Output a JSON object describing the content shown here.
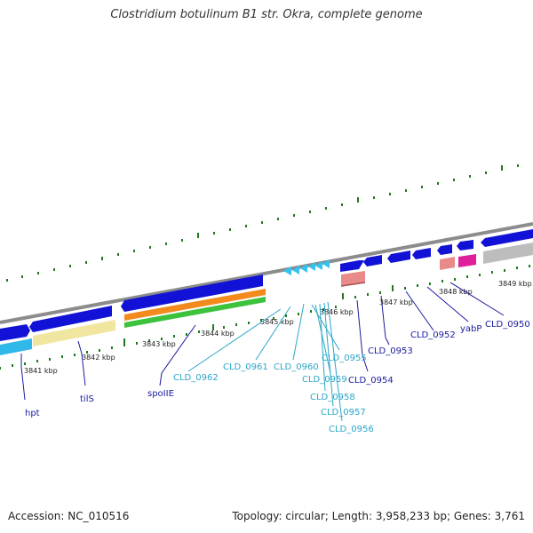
{
  "title": "Clostridium botulinum B1 str. Okra, complete genome",
  "footer": {
    "accession": "Accession: NC_010516",
    "summary": "Topology: circular; Length: 3,958,233 bp; Genes: 3,761"
  },
  "colors": {
    "backbone": "#8c8c8c",
    "cds_blue": "#1212d6",
    "small_cyan": "#33c3ee",
    "tick_green": "#1f7a1f",
    "trna_pink": "#e88a8a",
    "magenta": "#e0209a",
    "gray_feature": "#bdbdbd",
    "label_cyan": "#2aa6c8",
    "label_navy": "#1a1aa0",
    "pale_yellow": "#f0e6a0",
    "orange": "#f28a1e",
    "green": "#3cc23c"
  },
  "kbp_labels": [
    "3841 kbp",
    "3842 kbp",
    "3843 kbp",
    "3844 kbp",
    "3845 kbp",
    "3846 kbp",
    "3847 kbp",
    "3848 kbp",
    "3849 kbp"
  ],
  "gene_labels": [
    {
      "name": "hpt",
      "color": "navy"
    },
    {
      "name": "tilS",
      "color": "navy"
    },
    {
      "name": "spoIIE",
      "color": "navy"
    },
    {
      "name": "CLD_0962",
      "color": "cyan"
    },
    {
      "name": "CLD_0961",
      "color": "cyan"
    },
    {
      "name": "CLD_0960",
      "color": "cyan"
    },
    {
      "name": "CLD_0955",
      "color": "cyan"
    },
    {
      "name": "CLD_0959",
      "color": "cyan"
    },
    {
      "name": "CLD_0958",
      "color": "cyan"
    },
    {
      "name": "CLD_0957",
      "color": "cyan"
    },
    {
      "name": "CLD_0956",
      "color": "cyan"
    },
    {
      "name": "CLD_0954",
      "color": "navy"
    },
    {
      "name": "CLD_0953",
      "color": "navy"
    },
    {
      "name": "CLD_0952",
      "color": "navy"
    },
    {
      "name": "yabP",
      "color": "navy"
    },
    {
      "name": "CLD_0950",
      "color": "navy"
    }
  ]
}
